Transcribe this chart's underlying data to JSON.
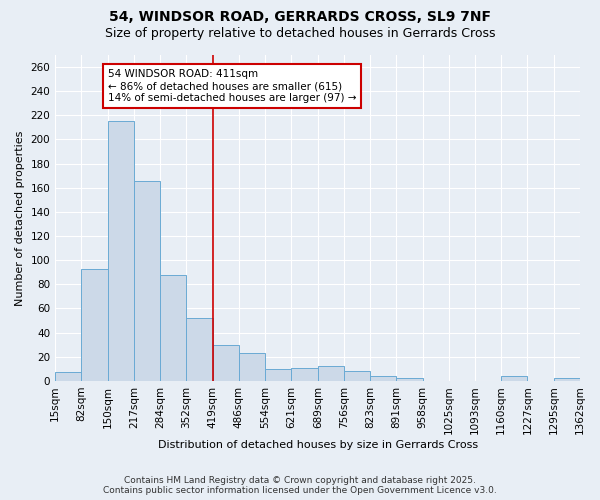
{
  "title_line1": "54, WINDSOR ROAD, GERRARDS CROSS, SL9 7NF",
  "title_line2": "Size of property relative to detached houses in Gerrards Cross",
  "xlabel": "Distribution of detached houses by size in Gerrards Cross",
  "ylabel": "Number of detached properties",
  "bin_edges": [
    15,
    82,
    150,
    217,
    284,
    352,
    419,
    486,
    554,
    621,
    689,
    756,
    823,
    891,
    958,
    1025,
    1093,
    1160,
    1227,
    1295,
    1362
  ],
  "bar_heights": [
    7,
    93,
    215,
    166,
    88,
    52,
    30,
    23,
    10,
    11,
    12,
    8,
    4,
    2,
    0,
    0,
    0,
    4,
    0,
    2
  ],
  "bar_facecolor": "#ccd9e8",
  "bar_edgecolor": "#6aaad4",
  "background_color": "#e8eef5",
  "grid_color": "#ffffff",
  "red_line_x": 419,
  "annotation_text": "54 WINDSOR ROAD: 411sqm\n← 86% of detached houses are smaller (615)\n14% of semi-detached houses are larger (97) →",
  "annotation_box_facecolor": "#ffffff",
  "annotation_box_edgecolor": "#cc0000",
  "ylim": [
    0,
    270
  ],
  "yticks": [
    0,
    20,
    40,
    60,
    80,
    100,
    120,
    140,
    160,
    180,
    200,
    220,
    240,
    260
  ],
  "footer_line1": "Contains HM Land Registry data © Crown copyright and database right 2025.",
  "footer_line2": "Contains public sector information licensed under the Open Government Licence v3.0.",
  "title_fontsize": 10,
  "subtitle_fontsize": 9,
  "axis_label_fontsize": 8,
  "tick_fontsize": 7.5,
  "annotation_fontsize": 7.5,
  "footer_fontsize": 6.5
}
